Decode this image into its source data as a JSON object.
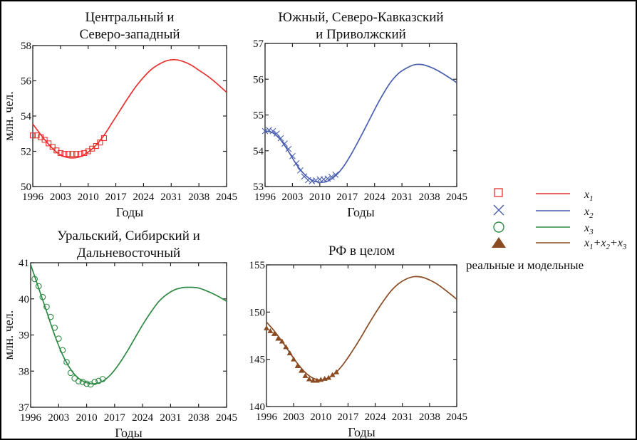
{
  "legend": {
    "entries": [
      {
        "marker": "square-marker",
        "label": "x1",
        "var": "x",
        "sub": "1",
        "color": "#e8312e"
      },
      {
        "marker": "cross-marker",
        "label": "x2",
        "var": "x",
        "sub": "2",
        "color": "#4a5fae"
      },
      {
        "marker": "circle-marker",
        "label": "x3",
        "var": "x",
        "sub": "3",
        "color": "#2f8a45"
      },
      {
        "marker": "triangle-marker",
        "label": "x1+x2+x3",
        "var": "x",
        "sub": "1+2+3",
        "color": "#8a4a22"
      }
    ],
    "caption": "реальные и  модельные"
  },
  "chart_data": [
    {
      "type": "line",
      "id": "central",
      "title": [
        "Центральный и",
        "Северо-западный"
      ],
      "xlabel": "Годы",
      "ylabel": "млн. чел.",
      "xlim": [
        1996,
        2045
      ],
      "ylim": [
        50,
        58
      ],
      "xticks": [
        1996,
        2003,
        2010,
        2017,
        2024,
        2031,
        2038,
        2045
      ],
      "yticks": [
        50,
        52,
        54,
        56,
        58
      ],
      "color": "#e8312e",
      "marker": "square",
      "series": [
        {
          "name": "x1 реальные",
          "kind": "points",
          "x": [
            1996,
            1997,
            1998,
            1999,
            2000,
            2001,
            2002,
            2003,
            2004,
            2005,
            2006,
            2007,
            2008,
            2009,
            2010,
            2011,
            2012,
            2013,
            2014
          ],
          "y": [
            52.9,
            52.9,
            52.8,
            52.65,
            52.45,
            52.25,
            52.05,
            51.9,
            51.85,
            51.85,
            51.85,
            51.85,
            51.85,
            51.9,
            52.0,
            52.15,
            52.3,
            52.5,
            52.75
          ]
        },
        {
          "name": "x1 модельные",
          "kind": "line",
          "x": [
            1996,
            1998,
            2000,
            2002,
            2004,
            2006,
            2008,
            2010,
            2012,
            2014,
            2016,
            2018,
            2020,
            2022,
            2024,
            2026,
            2028,
            2030,
            2032,
            2034,
            2036,
            2038,
            2040,
            2042,
            2044,
            2045
          ],
          "y": [
            53.55,
            52.95,
            52.4,
            51.95,
            51.7,
            51.62,
            51.7,
            51.95,
            52.35,
            52.9,
            53.6,
            54.3,
            55.0,
            55.65,
            56.2,
            56.65,
            56.95,
            57.15,
            57.2,
            57.1,
            56.9,
            56.6,
            56.3,
            55.95,
            55.55,
            55.35
          ]
        }
      ]
    },
    {
      "type": "line",
      "id": "south",
      "title": [
        "Южный, Северо-Кавказский",
        "и Приволжский"
      ],
      "xlabel": "Годы",
      "ylabel": "",
      "xlim": [
        1996,
        2045
      ],
      "ylim": [
        53,
        57
      ],
      "xticks": [
        1996,
        2003,
        2010,
        2017,
        2024,
        2031,
        2038,
        2045
      ],
      "yticks": [
        53,
        54,
        55,
        56,
        57
      ],
      "color": "#4a5fae",
      "marker": "cross",
      "series": [
        {
          "name": "x2 реальные",
          "kind": "points",
          "x": [
            1996,
            1997,
            1998,
            1999,
            2000,
            2001,
            2002,
            2003,
            2004,
            2005,
            2006,
            2007,
            2008,
            2009,
            2010,
            2011,
            2012,
            2013,
            2014
          ],
          "y": [
            54.55,
            54.58,
            54.55,
            54.48,
            54.35,
            54.2,
            54.05,
            53.85,
            53.65,
            53.45,
            53.28,
            53.18,
            53.15,
            53.17,
            53.2,
            53.2,
            53.22,
            53.27,
            53.33
          ]
        },
        {
          "name": "x2 модельные",
          "kind": "line",
          "x": [
            1996,
            1998,
            2000,
            2002,
            2004,
            2006,
            2008,
            2010,
            2012,
            2014,
            2016,
            2018,
            2020,
            2022,
            2024,
            2026,
            2028,
            2030,
            2032,
            2034,
            2036,
            2038,
            2040,
            2042,
            2044,
            2045
          ],
          "y": [
            54.55,
            54.5,
            54.3,
            53.98,
            53.62,
            53.35,
            53.18,
            53.12,
            53.15,
            53.3,
            53.55,
            53.9,
            54.3,
            54.72,
            55.15,
            55.55,
            55.9,
            56.15,
            56.3,
            56.4,
            56.41,
            56.35,
            56.25,
            56.12,
            55.98,
            55.9
          ]
        }
      ]
    },
    {
      "type": "line",
      "id": "ural",
      "title": [
        "Уральский, Сибирский и",
        "Дальневосточный"
      ],
      "xlabel": "Годы",
      "ylabel": "млн. чел.",
      "xlim": [
        1996,
        2045
      ],
      "ylim": [
        37,
        41
      ],
      "xticks": [
        1996,
        2003,
        2010,
        2017,
        2024,
        2031,
        2038,
        2045
      ],
      "yticks": [
        37,
        38,
        39,
        40,
        41
      ],
      "color": "#2f8a45",
      "marker": "circle",
      "series": [
        {
          "name": "x3 реальные",
          "kind": "points",
          "x": [
            1997,
            1998,
            1999,
            2000,
            2001,
            2002,
            2003,
            2004,
            2005,
            2006,
            2007,
            2008,
            2009,
            2010,
            2011,
            2012,
            2013,
            2014
          ],
          "y": [
            40.55,
            40.35,
            40.05,
            39.78,
            39.5,
            39.2,
            38.9,
            38.58,
            38.25,
            37.95,
            37.8,
            37.72,
            37.7,
            37.65,
            37.63,
            37.7,
            37.73,
            37.78
          ]
        },
        {
          "name": "x3 модельные",
          "kind": "line",
          "x": [
            1996,
            1998,
            2000,
            2002,
            2004,
            2006,
            2008,
            2010,
            2012,
            2014,
            2016,
            2018,
            2020,
            2022,
            2024,
            2026,
            2028,
            2030,
            2032,
            2034,
            2036,
            2038,
            2040,
            2042,
            2044,
            2045
          ],
          "y": [
            40.95,
            40.3,
            39.65,
            39.0,
            38.45,
            38.05,
            37.8,
            37.68,
            37.65,
            37.72,
            37.9,
            38.18,
            38.52,
            38.9,
            39.28,
            39.62,
            39.92,
            40.12,
            40.25,
            40.31,
            40.32,
            40.3,
            40.22,
            40.12,
            40.0,
            39.93
          ]
        }
      ]
    },
    {
      "type": "line",
      "id": "rf",
      "title": [
        "РФ в целом"
      ],
      "xlabel": "Годы",
      "ylabel": "",
      "xlim": [
        1996,
        2045
      ],
      "ylim": [
        140,
        155
      ],
      "xticks": [
        1996,
        2003,
        2010,
        2017,
        2024,
        2031,
        2038,
        2045
      ],
      "yticks": [
        140,
        145,
        150,
        155
      ],
      "color": "#8a4a22",
      "marker": "triangle",
      "series": [
        {
          "name": "x1+x2+x3 реальные",
          "kind": "points",
          "x": [
            1996,
            1997,
            1998,
            1999,
            2000,
            2001,
            2002,
            2003,
            2004,
            2005,
            2006,
            2007,
            2008,
            2009,
            2010,
            2011,
            2012,
            2013,
            2014
          ],
          "y": [
            148.3,
            148.0,
            147.7,
            147.2,
            146.9,
            146.3,
            145.65,
            145.0,
            144.3,
            143.8,
            143.25,
            142.9,
            142.75,
            142.75,
            142.85,
            142.95,
            143.05,
            143.35,
            143.65
          ]
        },
        {
          "name": "x1+x2+x3 модельные",
          "kind": "line",
          "x": [
            1996,
            1998,
            2000,
            2002,
            2004,
            2006,
            2008,
            2010,
            2012,
            2014,
            2016,
            2018,
            2020,
            2022,
            2024,
            2026,
            2028,
            2030,
            2032,
            2034,
            2036,
            2038,
            2040,
            2042,
            2044,
            2045
          ],
          "y": [
            148.95,
            148.0,
            146.9,
            145.7,
            144.55,
            143.6,
            143.0,
            142.8,
            143.05,
            143.65,
            144.6,
            145.8,
            147.1,
            148.5,
            149.85,
            151.1,
            152.2,
            153.0,
            153.5,
            153.75,
            153.7,
            153.4,
            152.95,
            152.35,
            151.7,
            151.35
          ]
        }
      ]
    }
  ]
}
